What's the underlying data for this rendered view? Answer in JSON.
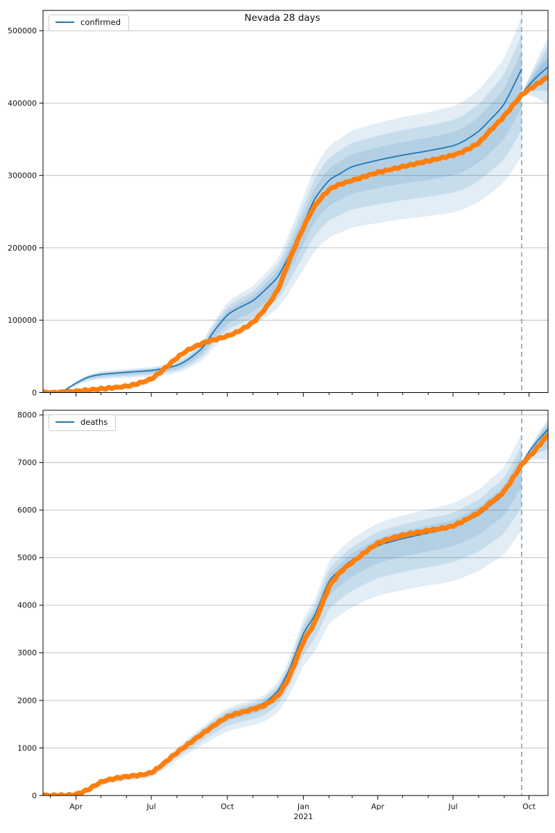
{
  "figure": {
    "title": "Nevada 28 days"
  },
  "colors": {
    "observed": "#ff7f0e",
    "model": "#1f77b4",
    "band": "#1f77b4",
    "dashed_line": "#72a8d3",
    "grid": "#b9b9b9",
    "spine": "#000000",
    "text": "#111111"
  },
  "x_axis": {
    "domain_start": "2020-02-21",
    "domain_end": "2021-10-24",
    "major_ticks": [
      {
        "label": "Apr",
        "date": "2020-04-01"
      },
      {
        "label": "Jul",
        "date": "2020-07-01"
      },
      {
        "label": "Oct",
        "date": "2020-10-01"
      },
      {
        "label": "Jan",
        "date": "2021-01-01"
      },
      {
        "label": "Apr",
        "date": "2021-04-01"
      },
      {
        "label": "Jul",
        "date": "2021-07-01"
      },
      {
        "label": "Oct",
        "date": "2021-10-01"
      }
    ],
    "year_label": {
      "text": "2021",
      "date": "2021-01-01"
    }
  },
  "forecast": {
    "vline_date": "2021-09-22"
  },
  "chart_data": [
    {
      "type": "line",
      "name": "confirmed",
      "title": "Nevada 28 days",
      "legend_label": "confirmed",
      "legend_position": "upper left",
      "grid": "horizontal",
      "ylim": [
        0,
        528000
      ],
      "y_ticks": [
        0,
        100000,
        200000,
        300000,
        400000,
        500000
      ],
      "series": [
        {
          "name": "confirmed-observed",
          "role": "observed",
          "points": [
            [
              "2020-02-21",
              0
            ],
            [
              "2020-03-10",
              200
            ],
            [
              "2020-04-01",
              1800
            ],
            [
              "2020-04-15",
              3300
            ],
            [
              "2020-05-01",
              5000
            ],
            [
              "2020-06-01",
              8700
            ],
            [
              "2020-06-15",
              12500
            ],
            [
              "2020-07-01",
              19000
            ],
            [
              "2020-07-15",
              31000
            ],
            [
              "2020-08-01",
              48000
            ],
            [
              "2020-08-15",
              59000
            ],
            [
              "2020-09-01",
              68000
            ],
            [
              "2020-09-15",
              73000
            ],
            [
              "2020-10-01",
              78000
            ],
            [
              "2020-10-15",
              85000
            ],
            [
              "2020-11-01",
              97000
            ],
            [
              "2020-11-15",
              115000
            ],
            [
              "2020-12-01",
              142000
            ],
            [
              "2020-12-15",
              183000
            ],
            [
              "2021-01-01",
              228000
            ],
            [
              "2021-01-15",
              258000
            ],
            [
              "2021-02-01",
              280000
            ],
            [
              "2021-02-15",
              288000
            ],
            [
              "2021-03-01",
              293000
            ],
            [
              "2021-04-01",
              304000
            ],
            [
              "2021-05-01",
              312000
            ],
            [
              "2021-06-01",
              320000
            ],
            [
              "2021-07-01",
              328000
            ],
            [
              "2021-07-15",
              334000
            ],
            [
              "2021-08-01",
              345000
            ],
            [
              "2021-08-15",
              362000
            ],
            [
              "2021-09-01",
              382000
            ],
            [
              "2021-09-22",
              411000
            ],
            [
              "2021-10-08",
              424000
            ],
            [
              "2021-10-24",
              436000
            ]
          ]
        },
        {
          "name": "confirmed-model-28day",
          "role": "model",
          "points": [
            [
              "2020-03-14",
              300
            ],
            [
              "2020-04-01",
              13000
            ],
            [
              "2020-04-15",
              21000
            ],
            [
              "2020-05-01",
              25000
            ],
            [
              "2020-06-01",
              28000
            ],
            [
              "2020-07-01",
              30500
            ],
            [
              "2020-07-15",
              33000
            ],
            [
              "2020-08-01",
              37500
            ],
            [
              "2020-08-15",
              46000
            ],
            [
              "2020-09-01",
              62000
            ],
            [
              "2020-09-15",
              85000
            ],
            [
              "2020-10-01",
              107000
            ],
            [
              "2020-10-15",
              117000
            ],
            [
              "2020-11-01",
              127000
            ],
            [
              "2020-11-15",
              141000
            ],
            [
              "2020-12-01",
              160000
            ],
            [
              "2020-12-15",
              190000
            ],
            [
              "2021-01-01",
              233000
            ],
            [
              "2021-01-15",
              268000
            ],
            [
              "2021-02-01",
              293000
            ],
            [
              "2021-02-15",
              303000
            ],
            [
              "2021-03-01",
              312000
            ],
            [
              "2021-04-01",
              321000
            ],
            [
              "2021-05-01",
              328000
            ],
            [
              "2021-06-01",
              334000
            ],
            [
              "2021-07-01",
              341000
            ],
            [
              "2021-07-15",
              348000
            ],
            [
              "2021-08-01",
              361000
            ],
            [
              "2021-08-15",
              377000
            ],
            [
              "2021-09-01",
              399000
            ],
            [
              "2021-09-22",
              447000
            ]
          ]
        },
        {
          "name": "confirmed-forecast",
          "role": "forecast",
          "points": [
            [
              "2021-09-22",
              413000
            ],
            [
              "2021-10-02",
              426000
            ],
            [
              "2021-10-12",
              438000
            ],
            [
              "2021-10-24",
              450000
            ]
          ]
        }
      ],
      "bands": {
        "hindcast_levels": [
          {
            "lo": 0.73,
            "hi": 1.16
          },
          {
            "lo": 0.81,
            "hi": 1.105
          },
          {
            "lo": 0.88,
            "hi": 1.055
          }
        ],
        "forecast_levels": [
          {
            "lo": 0.885,
            "hi": 1.09
          },
          {
            "lo": 0.925,
            "hi": 1.06
          },
          {
            "lo": 0.957,
            "hi": 1.032
          }
        ]
      }
    },
    {
      "type": "line",
      "name": "deaths",
      "title": "",
      "legend_label": "deaths",
      "legend_position": "upper left",
      "grid": "horizontal",
      "ylim": [
        0,
        8100
      ],
      "y_ticks": [
        0,
        1000,
        2000,
        3000,
        4000,
        5000,
        6000,
        7000,
        8000
      ],
      "series": [
        {
          "name": "deaths-observed",
          "role": "observed",
          "points": [
            [
              "2020-02-21",
              0
            ],
            [
              "2020-03-20",
              5
            ],
            [
              "2020-04-01",
              25
            ],
            [
              "2020-04-15",
              120
            ],
            [
              "2020-05-01",
              280
            ],
            [
              "2020-05-15",
              350
            ],
            [
              "2020-06-01",
              400
            ],
            [
              "2020-07-01",
              485
            ],
            [
              "2020-08-01",
              900
            ],
            [
              "2020-09-01",
              1300
            ],
            [
              "2020-10-01",
              1650
            ],
            [
              "2020-11-01",
              1815
            ],
            [
              "2020-11-15",
              1900
            ],
            [
              "2020-12-01",
              2100
            ],
            [
              "2020-12-15",
              2500
            ],
            [
              "2021-01-01",
              3230
            ],
            [
              "2021-01-15",
              3650
            ],
            [
              "2021-02-01",
              4380
            ],
            [
              "2021-02-15",
              4700
            ],
            [
              "2021-03-01",
              4900
            ],
            [
              "2021-04-01",
              5300
            ],
            [
              "2021-05-01",
              5470
            ],
            [
              "2021-06-01",
              5570
            ],
            [
              "2021-07-01",
              5670
            ],
            [
              "2021-08-01",
              5950
            ],
            [
              "2021-08-15",
              6150
            ],
            [
              "2021-09-01",
              6400
            ],
            [
              "2021-09-22",
              6950
            ],
            [
              "2021-10-08",
              7250
            ],
            [
              "2021-10-24",
              7590
            ]
          ]
        },
        {
          "name": "deaths-model-28day",
          "role": "model",
          "points": [
            [
              "2020-03-20",
              3
            ],
            [
              "2020-04-01",
              20
            ],
            [
              "2020-04-15",
              110
            ],
            [
              "2020-05-01",
              265
            ],
            [
              "2020-06-01",
              390
            ],
            [
              "2020-07-01",
              480
            ],
            [
              "2020-08-01",
              920
            ],
            [
              "2020-09-01",
              1330
            ],
            [
              "2020-10-01",
              1680
            ],
            [
              "2020-11-01",
              1850
            ],
            [
              "2020-11-15",
              1950
            ],
            [
              "2020-12-01",
              2200
            ],
            [
              "2020-12-15",
              2650
            ],
            [
              "2021-01-01",
              3400
            ],
            [
              "2021-01-15",
              3800
            ],
            [
              "2021-02-01",
              4500
            ],
            [
              "2021-02-15",
              4750
            ],
            [
              "2021-03-01",
              4950
            ],
            [
              "2021-04-01",
              5250
            ],
            [
              "2021-05-01",
              5400
            ],
            [
              "2021-06-01",
              5520
            ],
            [
              "2021-07-01",
              5640
            ],
            [
              "2021-08-01",
              5900
            ],
            [
              "2021-08-15",
              6100
            ],
            [
              "2021-09-01",
              6350
            ],
            [
              "2021-09-22",
              6980
            ]
          ]
        },
        {
          "name": "deaths-forecast",
          "role": "forecast",
          "points": [
            [
              "2021-09-22",
              6990
            ],
            [
              "2021-10-02",
              7250
            ],
            [
              "2021-10-12",
              7470
            ],
            [
              "2021-10-24",
              7700
            ]
          ]
        }
      ],
      "bands": {
        "hindcast_levels": [
          {
            "lo": 0.8,
            "hi": 1.09
          },
          {
            "lo": 0.87,
            "hi": 1.055
          },
          {
            "lo": 0.93,
            "hi": 1.028
          }
        ],
        "forecast_levels": [
          {
            "lo": 0.915,
            "hi": 1.028
          },
          {
            "lo": 0.945,
            "hi": 1.018
          },
          {
            "lo": 0.97,
            "hi": 1.009
          }
        ]
      }
    }
  ]
}
